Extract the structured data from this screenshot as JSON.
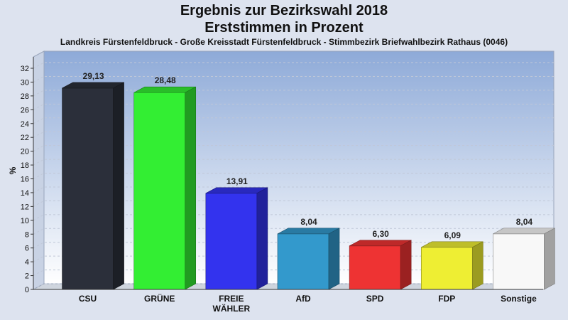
{
  "chart_data": {
    "type": "bar",
    "title": "Ergebnis zur Bezirkswahl 2018",
    "title_line2": "Erststimmen in Prozent",
    "subtitle": "Landkreis Fürstenfeldbruck - Große Kreisstadt Fürstenfeldbruck - Stimmbezirk Briefwahlbezirk Rathaus (0046)",
    "ylabel": "%",
    "ylim": [
      0,
      32
    ],
    "yticks": [
      "0",
      "2",
      "4",
      "6",
      "8",
      "10",
      "12",
      "14",
      "16",
      "18",
      "20",
      "22",
      "24",
      "26",
      "28",
      "30",
      "32"
    ],
    "categories": [
      "CSU",
      "GRÜNE",
      "FREIE WÄHLER",
      "AfD",
      "SPD",
      "FDP",
      "Sonstige"
    ],
    "category_lines": [
      [
        "CSU"
      ],
      [
        "GRÜNE"
      ],
      [
        "FREIE",
        "WÄHLER"
      ],
      [
        "AfD"
      ],
      [
        "SPD"
      ],
      [
        "FDP"
      ],
      [
        "Sonstige"
      ]
    ],
    "values": [
      29.13,
      28.48,
      13.91,
      8.04,
      6.3,
      6.09,
      8.04
    ],
    "value_labels": [
      "29,13",
      "28,48",
      "13,91",
      "8,04",
      "6,30",
      "6,09",
      "8,04"
    ],
    "colors": [
      "#2b2f3a",
      "#33ee33",
      "#3333ee",
      "#3399cc",
      "#ee3333",
      "#eeee33",
      "#f8f8f8"
    ],
    "grid": true
  }
}
